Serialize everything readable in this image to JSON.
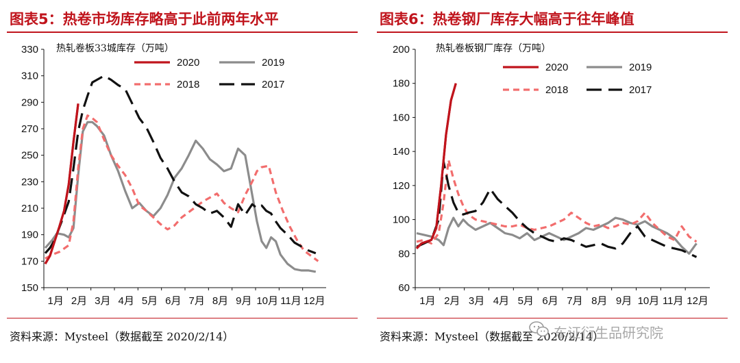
{
  "chart_data": [
    {
      "type": "line",
      "title": "图表5：热卷市场库存略高于此前两年水平",
      "unit_label": "热轧卷板33城库存（万吨）",
      "source": "资料来源：Mysteel（数据截至 2020/2/14）",
      "categories": [
        "1月",
        "2月",
        "3月",
        "4月",
        "5月",
        "6月",
        "7月",
        "8月",
        "9月",
        "10月",
        "11月",
        "12月"
      ],
      "ylim": [
        150,
        330
      ],
      "yticks": [
        "150",
        "170",
        "190",
        "210",
        "230",
        "250",
        "270",
        "290",
        "310",
        "330"
      ],
      "legend_position": "top-right",
      "series": [
        {
          "name": "2020",
          "color": "#c0141c",
          "dash": "solid",
          "x": [
            0.0,
            0.2,
            0.4,
            0.6,
            0.8,
            1.0,
            1.2,
            1.4
          ],
          "y": [
            168,
            174,
            185,
            196,
            208,
            228,
            260,
            289
          ]
        },
        {
          "name": "2019",
          "color": "#8c8c8c",
          "dash": "solid",
          "x": [
            0.0,
            0.3,
            0.5,
            0.8,
            1.0,
            1.2,
            1.4,
            1.6,
            1.8,
            2.0,
            2.2,
            2.5,
            2.8,
            3.1,
            3.4,
            3.7,
            4.0,
            4.3,
            4.6,
            4.9,
            5.2,
            5.5,
            5.8,
            6.1,
            6.4,
            6.7,
            7.0,
            7.3,
            7.6,
            7.9,
            8.2,
            8.5,
            8.8,
            9.0,
            9.2,
            9.4,
            9.6,
            9.8,
            10.0,
            10.3,
            10.6,
            10.9,
            11.2,
            11.5
          ],
          "y": [
            180,
            186,
            191,
            190,
            188,
            195,
            235,
            268,
            275,
            275,
            272,
            265,
            250,
            238,
            223,
            210,
            214,
            208,
            204,
            210,
            220,
            233,
            240,
            250,
            261,
            255,
            247,
            243,
            238,
            240,
            255,
            250,
            220,
            200,
            185,
            180,
            188,
            185,
            175,
            168,
            164,
            163,
            163,
            162
          ]
        },
        {
          "name": "2018",
          "color": "#f26d6d",
          "dash": "dashed",
          "x": [
            0.0,
            0.3,
            0.6,
            1.0,
            1.2,
            1.4,
            1.6,
            1.8,
            2.0,
            2.2,
            2.5,
            2.8,
            3.1,
            3.4,
            3.7,
            4.0,
            4.3,
            4.6,
            4.9,
            5.2,
            5.5,
            5.8,
            6.1,
            6.4,
            6.7,
            7.0,
            7.3,
            7.6,
            7.9,
            8.2,
            8.5,
            8.8,
            9.0,
            9.2,
            9.5,
            9.8,
            10.1,
            10.4,
            10.7,
            11.0,
            11.3,
            11.6
          ],
          "y": [
            172,
            175,
            177,
            182,
            200,
            240,
            270,
            280,
            278,
            275,
            262,
            250,
            242,
            235,
            225,
            212,
            208,
            203,
            198,
            194,
            197,
            203,
            207,
            211,
            215,
            218,
            221,
            214,
            210,
            207,
            220,
            230,
            238,
            241,
            242,
            222,
            208,
            196,
            186,
            178,
            174,
            170
          ]
        },
        {
          "name": "2017",
          "color": "#111111",
          "dash": "longdash",
          "x": [
            0.0,
            0.2,
            0.4,
            0.7,
            1.0,
            1.2,
            1.4,
            1.6,
            1.8,
            2.0,
            2.2,
            2.5,
            2.8,
            3.1,
            3.4,
            3.7,
            4.0,
            4.3,
            4.6,
            4.9,
            5.2,
            5.5,
            5.8,
            6.1,
            6.4,
            6.7,
            7.0,
            7.3,
            7.6,
            7.9,
            8.2,
            8.5,
            8.8,
            9.0,
            9.2,
            9.4,
            9.6,
            9.8,
            10.0,
            10.3,
            10.6,
            10.9,
            11.2,
            11.5
          ],
          "y": [
            176,
            180,
            186,
            200,
            215,
            240,
            268,
            284,
            295,
            305,
            307,
            310,
            307,
            303,
            300,
            289,
            278,
            271,
            260,
            248,
            240,
            230,
            222,
            219,
            213,
            210,
            206,
            208,
            203,
            196,
            213,
            205,
            213,
            210,
            212,
            208,
            206,
            200,
            195,
            190,
            184,
            181,
            178,
            176
          ]
        }
      ]
    },
    {
      "type": "line",
      "title": "图表6：热卷钢厂库存大幅高于往年峰值",
      "unit_label": "热轧卷板钢厂库存（万吨）",
      "source": "资料来源：Mysteel（数据截至 2020/2/14）",
      "categories": [
        "1月",
        "2月",
        "3月",
        "4月",
        "5月",
        "6月",
        "7月",
        "8月",
        "9月",
        "10月",
        "11月",
        "12月"
      ],
      "ylim": [
        60,
        200
      ],
      "yticks": [
        "60",
        "80",
        "100",
        "120",
        "140",
        "160",
        "180",
        "200"
      ],
      "legend_position": "top-right",
      "series": [
        {
          "name": "2020",
          "color": "#c0141c",
          "dash": "solid",
          "x": [
            0.0,
            0.2,
            0.4,
            0.6,
            0.8,
            1.0,
            1.2,
            1.4,
            1.6
          ],
          "y": [
            83,
            86,
            87,
            88,
            95,
            120,
            150,
            170,
            180
          ]
        },
        {
          "name": "2019",
          "color": "#8c8c8c",
          "dash": "solid",
          "x": [
            0.0,
            0.3,
            0.6,
            0.9,
            1.1,
            1.3,
            1.5,
            1.7,
            1.9,
            2.1,
            2.4,
            2.7,
            3.0,
            3.3,
            3.6,
            3.9,
            4.2,
            4.5,
            4.8,
            5.1,
            5.4,
            5.7,
            6.0,
            6.3,
            6.6,
            6.9,
            7.2,
            7.5,
            7.8,
            8.1,
            8.4,
            8.7,
            9.0,
            9.3,
            9.6,
            9.9,
            10.2,
            10.5,
            10.8,
            11.1,
            11.4
          ],
          "y": [
            92,
            91,
            90,
            88,
            85,
            95,
            101,
            96,
            100,
            97,
            94,
            96,
            98,
            95,
            92,
            91,
            89,
            92,
            88,
            90,
            92,
            90,
            88,
            90,
            92,
            95,
            94,
            96,
            98,
            101,
            100,
            98,
            97,
            99,
            96,
            94,
            92,
            89,
            84,
            80,
            86
          ]
        },
        {
          "name": "2018",
          "color": "#f26d6d",
          "dash": "dashed",
          "x": [
            0.0,
            0.3,
            0.6,
            0.9,
            1.1,
            1.3,
            1.5,
            1.7,
            1.9,
            2.1,
            2.4,
            2.7,
            3.0,
            3.3,
            3.6,
            3.9,
            4.2,
            4.5,
            4.8,
            5.1,
            5.4,
            5.7,
            6.0,
            6.3,
            6.6,
            6.9,
            7.2,
            7.5,
            7.8,
            8.1,
            8.4,
            8.7,
            9.0,
            9.3,
            9.6,
            9.9,
            10.2,
            10.5,
            10.8,
            11.1,
            11.4
          ],
          "y": [
            87,
            88,
            86,
            92,
            110,
            135,
            124,
            115,
            108,
            103,
            100,
            99,
            98,
            97,
            96,
            96,
            97,
            95,
            94,
            95,
            96,
            98,
            100,
            104,
            101,
            98,
            96,
            97,
            95,
            96,
            98,
            97,
            99,
            104,
            98,
            94,
            90,
            88,
            96,
            90,
            87
          ]
        },
        {
          "name": "2017",
          "color": "#111111",
          "dash": "longdash",
          "x": [
            0.0,
            0.3,
            0.6,
            0.9,
            1.1,
            1.3,
            1.5,
            1.7,
            1.9,
            2.1,
            2.4,
            2.7,
            3.0,
            3.3,
            3.6,
            3.9,
            4.2,
            4.5,
            4.8,
            5.1,
            5.4,
            5.7,
            6.0,
            6.3,
            6.6,
            6.9,
            7.2,
            7.5,
            7.8,
            8.1,
            8.4,
            8.7,
            9.0,
            9.3,
            9.6,
            9.9,
            10.2,
            10.5,
            10.8,
            11.1,
            11.4
          ],
          "y": [
            84,
            86,
            88,
            100,
            134,
            120,
            110,
            104,
            103,
            104,
            105,
            110,
            118,
            112,
            108,
            104,
            99,
            95,
            92,
            90,
            88,
            87,
            89,
            88,
            86,
            84,
            85,
            86,
            84,
            83,
            86,
            92,
            96,
            90,
            88,
            86,
            84,
            83,
            82,
            80,
            78
          ]
        }
      ]
    }
  ],
  "watermark": "东证衍生品研究院"
}
